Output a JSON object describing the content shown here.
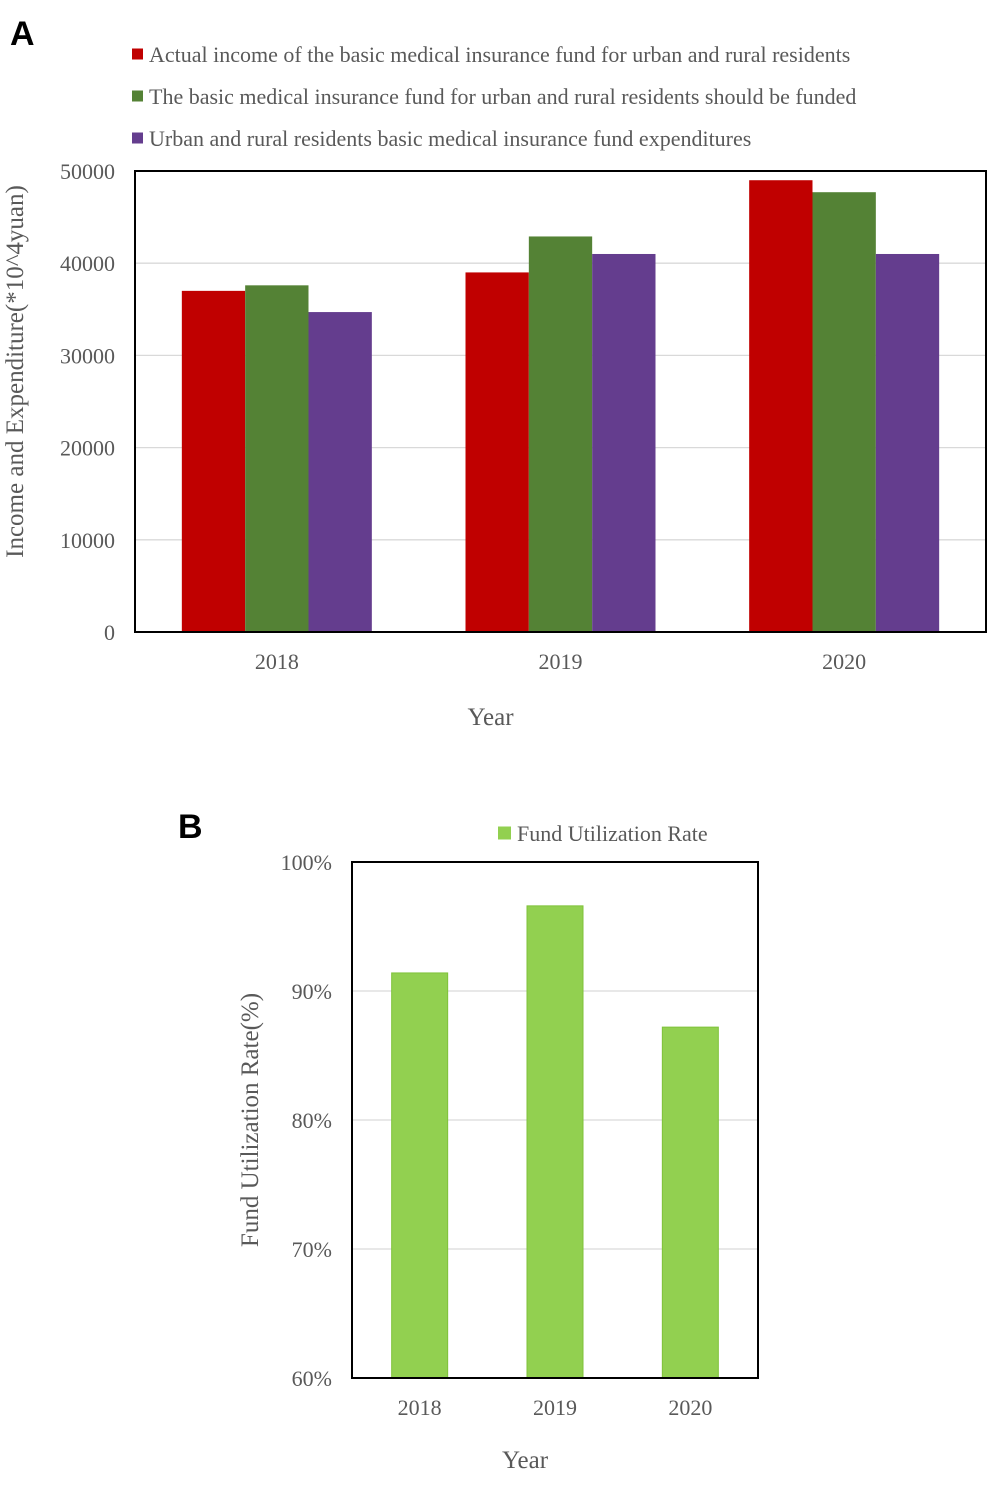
{
  "chart_data": [
    {
      "panel": "A",
      "type": "bar",
      "categories": [
        "2018",
        "2019",
        "2020"
      ],
      "series": [
        {
          "name": "Actual income of the basic medical insurance fund for urban and rural residents",
          "values": [
            37000,
            39000,
            49000
          ],
          "color": "#C00000"
        },
        {
          "name": "The basic medical insurance fund for urban and rural residents should be funded",
          "values": [
            37600,
            42900,
            47700
          ],
          "color": "#548235"
        },
        {
          "name": "Urban and rural residents basic medical insurance fund expenditures",
          "values": [
            34700,
            41000,
            41000
          ],
          "color": "#643D8E"
        }
      ],
      "title": "",
      "xlabel": "Year",
      "ylabel": "Income and Expenditure(*10^4yuan)",
      "ylim": [
        0,
        50000
      ],
      "yticks": [
        "0",
        "10000",
        "20000",
        "30000",
        "40000",
        "50000"
      ],
      "grid": true,
      "legend": "top"
    },
    {
      "panel": "B",
      "type": "bar",
      "categories": [
        "2018",
        "2019",
        "2020"
      ],
      "series": [
        {
          "name": "Fund Utilization Rate",
          "values": [
            91.4,
            96.6,
            87.2
          ],
          "color": "#92D050"
        }
      ],
      "title": "",
      "xlabel": "Year",
      "ylabel": "Fund Utilization Rate(%)",
      "ylim": [
        60,
        100
      ],
      "yticks": [
        "60%",
        "70%",
        "80%",
        "90%",
        "100%"
      ],
      "grid": true,
      "legend": "top"
    }
  ]
}
